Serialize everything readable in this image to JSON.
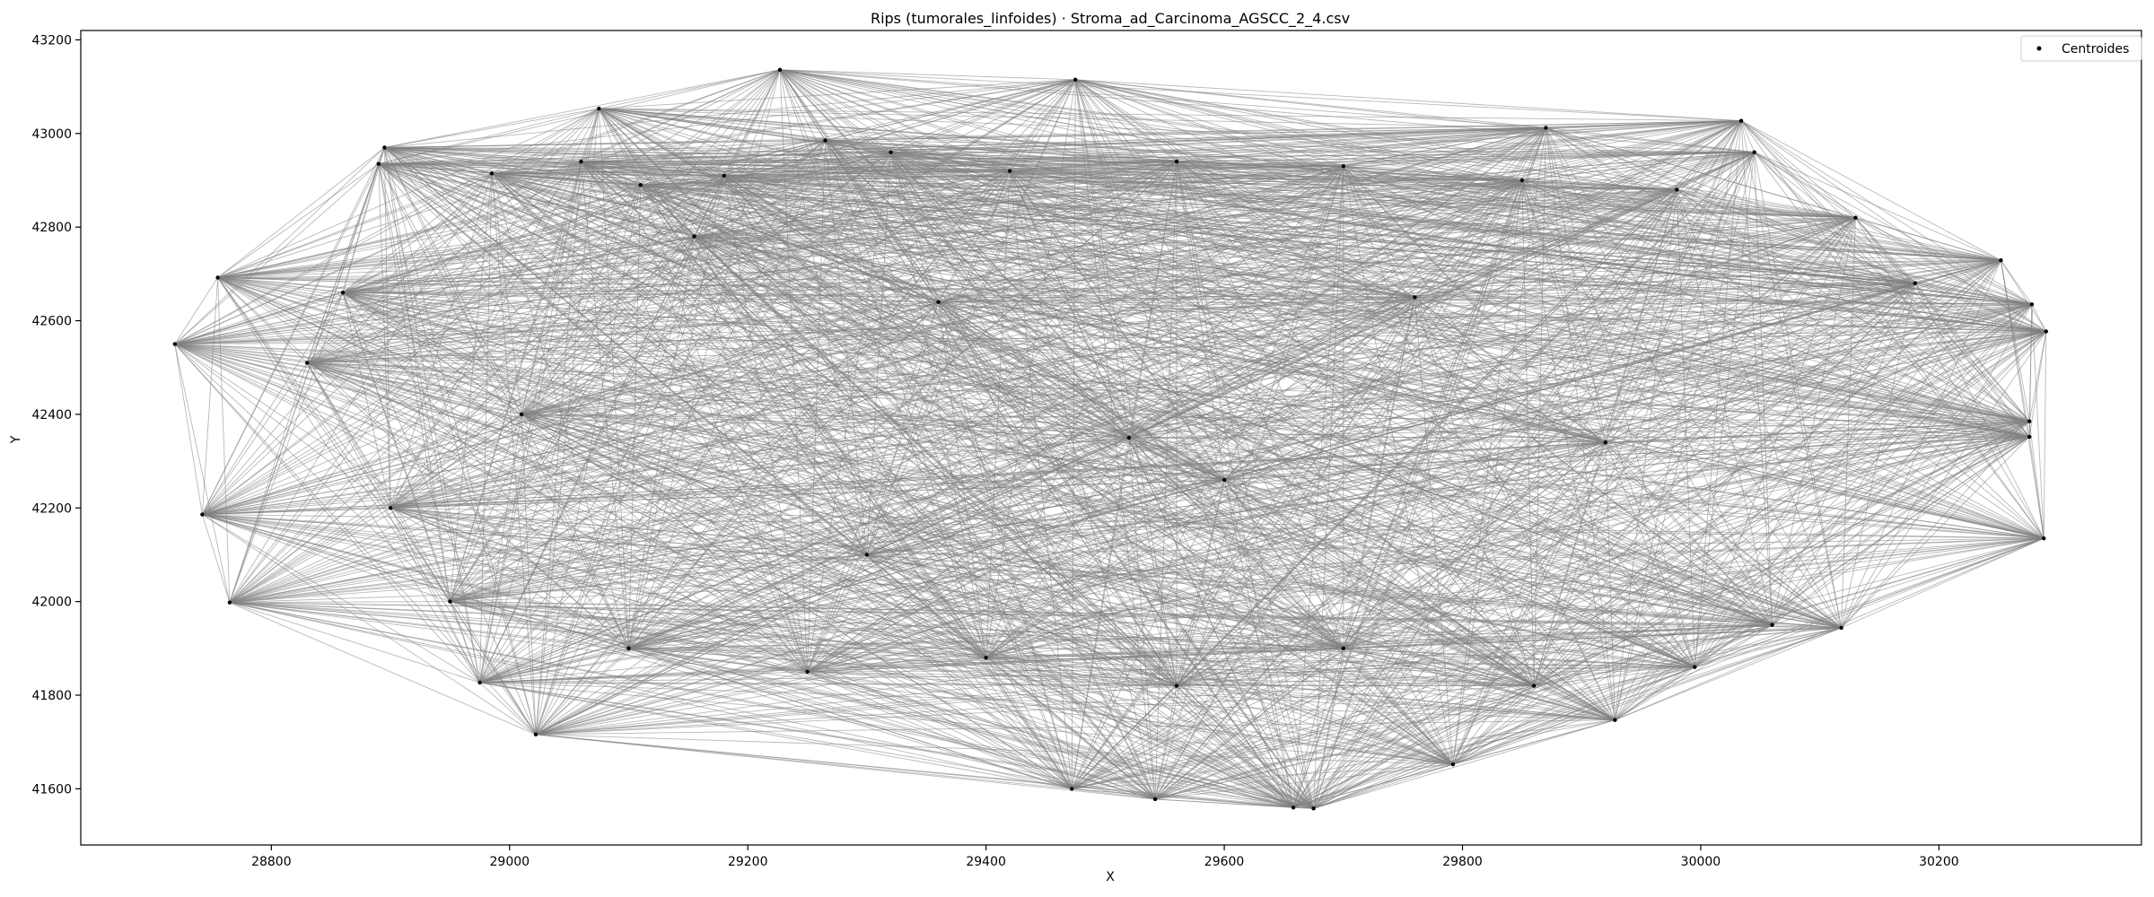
{
  "chart_data": {
    "type": "scatter",
    "title": "Rips (tumorales_linfoides) · Stroma_ad_Carcinoma_AGSCC_2_4.csv",
    "xlabel": "X",
    "ylabel": "Y",
    "xlim": [
      28640,
      30370
    ],
    "ylim": [
      41480,
      43220
    ],
    "xticks": [
      28800,
      29000,
      29200,
      29400,
      29600,
      29800,
      30000,
      30200
    ],
    "yticks": [
      41600,
      41800,
      42000,
      42200,
      42400,
      42600,
      42800,
      43000,
      43200
    ],
    "grid": false,
    "legend": {
      "placement": "top-right",
      "entries": [
        "Centroides"
      ]
    },
    "marker_color": "#000000",
    "edge_color": "#808080",
    "series": [
      {
        "name": "Centroides",
        "points": [
          [
            28719,
            42550
          ],
          [
            28755,
            42692
          ],
          [
            28742,
            42186
          ],
          [
            28765,
            41998
          ],
          [
            28895,
            42970
          ],
          [
            28890,
            42935
          ],
          [
            28985,
            42915
          ],
          [
            28975,
            41827
          ],
          [
            29022,
            41716
          ],
          [
            29075,
            43053
          ],
          [
            29110,
            42890
          ],
          [
            29155,
            42780
          ],
          [
            29227,
            43136
          ],
          [
            29265,
            42985
          ],
          [
            29475,
            43115
          ],
          [
            29472,
            41600
          ],
          [
            29542,
            41578
          ],
          [
            29658,
            41560
          ],
          [
            29675,
            41558
          ],
          [
            29792,
            41652
          ],
          [
            29870,
            43012
          ],
          [
            29928,
            41747
          ],
          [
            29995,
            41860
          ],
          [
            30034,
            43027
          ],
          [
            30045,
            42960
          ],
          [
            30118,
            41944
          ],
          [
            30252,
            42729
          ],
          [
            30278,
            42635
          ],
          [
            30276,
            42385
          ],
          [
            30276,
            42352
          ],
          [
            30290,
            42577
          ],
          [
            30288,
            42135
          ],
          [
            29060,
            42940
          ],
          [
            29180,
            42910
          ],
          [
            29320,
            42960
          ],
          [
            29420,
            42920
          ],
          [
            29560,
            42940
          ],
          [
            29700,
            42930
          ],
          [
            29850,
            42900
          ],
          [
            29980,
            42880
          ],
          [
            30130,
            42820
          ],
          [
            28860,
            42660
          ],
          [
            28830,
            42510
          ],
          [
            28900,
            42200
          ],
          [
            29010,
            42400
          ],
          [
            28950,
            42000
          ],
          [
            29100,
            41900
          ],
          [
            29250,
            41850
          ],
          [
            29400,
            41880
          ],
          [
            29560,
            41820
          ],
          [
            29700,
            41900
          ],
          [
            29860,
            41820
          ],
          [
            30060,
            41950
          ],
          [
            29600,
            42260
          ],
          [
            29360,
            42640
          ],
          [
            29760,
            42650
          ],
          [
            29920,
            42340
          ],
          [
            30180,
            42680
          ],
          [
            29520,
            42350
          ],
          [
            29300,
            42100
          ]
        ]
      }
    ]
  }
}
